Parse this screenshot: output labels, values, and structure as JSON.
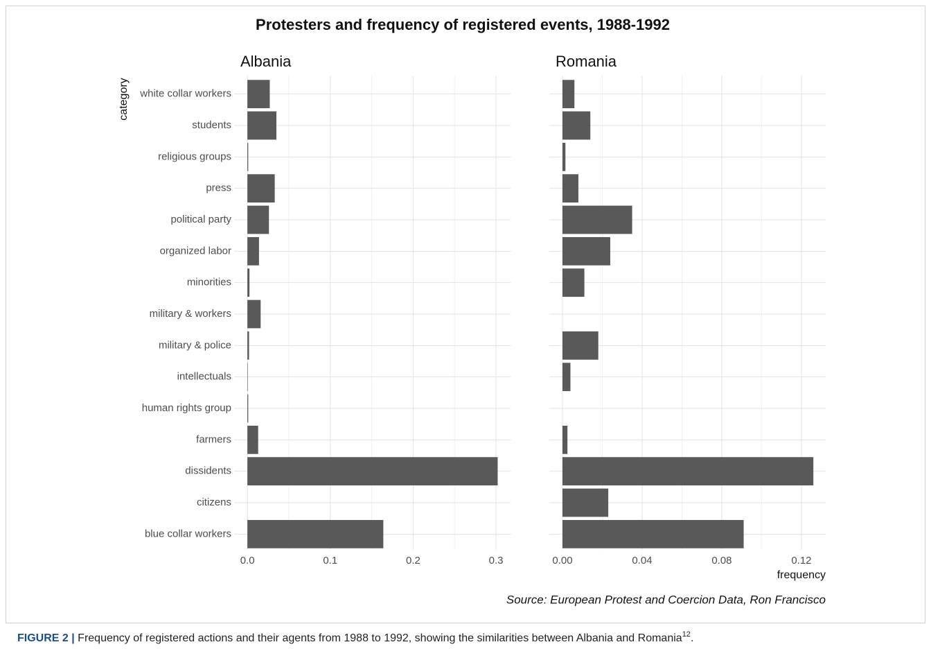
{
  "figure": {
    "title": "Protesters and frequency of registered events, 1988-1992",
    "ylabel": "category",
    "xlabel": "frequency",
    "source": "Source: European Protest and Coercion Data, Ron Francisco",
    "caption_label": "FIGURE 2 |",
    "caption_text": " Frequency of registered actions and their agents from 1988 to 1992, showing the similarities between Albania and Romania",
    "caption_ref": "12",
    "caption_end": "."
  },
  "chart_data": [
    {
      "type": "bar",
      "orientation": "horizontal",
      "title": "Albania",
      "categories": [
        "white collar workers",
        "students",
        "religious groups",
        "press",
        "political party",
        "organized labor",
        "minorities",
        "military & workers",
        "military & police",
        "intellectuals",
        "human rights group",
        "farmers",
        "dissidents",
        "citizens",
        "blue collar workers"
      ],
      "values": [
        0.027,
        0.035,
        0.001,
        0.033,
        0.026,
        0.014,
        0.0025,
        0.016,
        0.002,
        0.0005,
        0.001,
        0.013,
        0.302,
        null,
        0.164
      ],
      "color": "#595959",
      "xlim": [
        -0.016,
        0.3175
      ],
      "xticks": [
        {
          "value": 0,
          "label": "0.0"
        },
        0.1,
        0.2,
        0.3
      ],
      "grid": true
    },
    {
      "type": "bar",
      "orientation": "horizontal",
      "title": "Romania",
      "values": [
        0.006,
        0.014,
        0.0015,
        0.008,
        0.035,
        0.024,
        0.011,
        null,
        0.018,
        0.004,
        null,
        0.0025,
        0.126,
        0.023,
        0.091
      ],
      "color": "#595959",
      "xlim": [
        -0.0066,
        0.1322
      ],
      "xticks": [
        {
          "value": 0,
          "label": "0.00"
        },
        0.04,
        0.08,
        0.12
      ],
      "grid": true
    }
  ]
}
